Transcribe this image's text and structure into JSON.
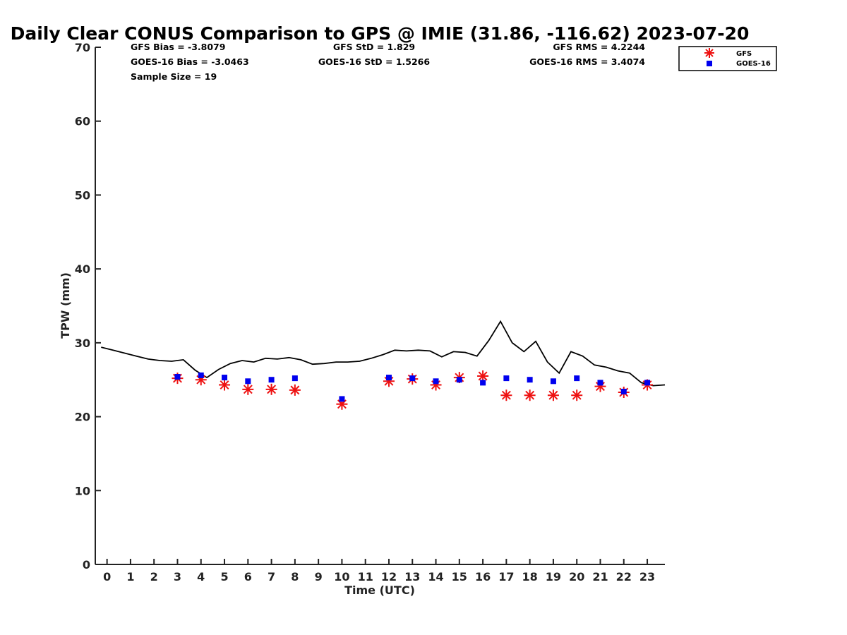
{
  "chart_data": {
    "type": "scatter",
    "title": "Daily Clear CONUS Comparison to GPS @ IMIE (31.86, -116.62) 2023-07-20",
    "xlabel": "Time (UTC)",
    "ylabel": "TPW (mm)",
    "xlim": [
      -0.5,
      23.75
    ],
    "ylim": [
      0,
      70
    ],
    "x_ticks": [
      0,
      1,
      2,
      3,
      4,
      5,
      6,
      7,
      8,
      9,
      10,
      11,
      12,
      13,
      14,
      15,
      16,
      17,
      18,
      19,
      20,
      21,
      22,
      23
    ],
    "x_tick_labels": [
      "0",
      "1",
      "2",
      "3",
      "4",
      "5",
      "6",
      "7",
      "8",
      "9",
      "10",
      "11",
      "12",
      "13",
      "14",
      "15",
      "16",
      "17",
      "18",
      "19",
      "20",
      "21",
      "22",
      "23"
    ],
    "y_ticks": [
      0,
      10,
      20,
      30,
      40,
      50,
      60,
      70
    ],
    "y_tick_labels": [
      "0",
      "10",
      "20",
      "30",
      "40",
      "50",
      "60",
      "70"
    ],
    "grid": false,
    "legend_position": "top-right",
    "stats": [
      "GFS Bias = -3.8079",
      "GOES-16 Bias = -3.0463",
      "Sample Size = 19",
      "GFS StD = 1.829",
      "GOES-16 StD = 1.5266",
      "GFS RMS = 4.2244",
      "GOES-16 RMS = 3.4074"
    ],
    "gps_line": {
      "color": "#000000",
      "x": [
        -0.25,
        0.25,
        0.75,
        1.25,
        1.75,
        2.25,
        2.75,
        3.25,
        3.75,
        4.25,
        4.75,
        5.25,
        5.75,
        6.25,
        6.75,
        7.25,
        7.75,
        8.25,
        8.75,
        9.25,
        9.75,
        10.25,
        10.75,
        11.25,
        11.75,
        12.25,
        12.75,
        13.25,
        13.75,
        14.25,
        14.75,
        15.25,
        15.75,
        16.25,
        16.75,
        17.25,
        17.75,
        18.25,
        18.75,
        19.25,
        19.75,
        20.25,
        20.75,
        21.25,
        21.75,
        22.25,
        22.75,
        23.25,
        23.75
      ],
      "y": [
        29.4,
        29.0,
        28.6,
        28.2,
        27.8,
        27.6,
        27.5,
        27.7,
        26.3,
        25.3,
        26.4,
        27.2,
        27.6,
        27.4,
        27.9,
        27.8,
        28.0,
        27.7,
        27.1,
        27.2,
        27.4,
        27.4,
        27.5,
        27.9,
        28.4,
        29.0,
        28.9,
        29.0,
        28.9,
        28.1,
        28.8,
        28.7,
        28.2,
        30.3,
        32.9,
        30.0,
        28.8,
        30.2,
        27.4,
        25.9,
        28.8,
        28.2,
        27.0,
        26.7,
        26.2,
        25.9,
        24.6,
        24.2,
        24.3
      ]
    },
    "series": [
      {
        "name": "GFS",
        "marker": "asterisk",
        "color": "#ee1111",
        "x": [
          3,
          4,
          5,
          6,
          7,
          8,
          10,
          12,
          13,
          14,
          15,
          16,
          17,
          18,
          19,
          20,
          21,
          22,
          23
        ],
        "values": [
          25.2,
          25.0,
          24.3,
          23.7,
          23.7,
          23.6,
          21.7,
          24.8,
          25.1,
          24.3,
          25.3,
          25.5,
          22.9,
          22.9,
          22.9,
          22.9,
          24.1,
          23.3,
          24.3
        ]
      },
      {
        "name": "GOES-16",
        "marker": "square",
        "color": "#0000ee",
        "x": [
          3,
          4,
          5,
          6,
          7,
          8,
          10,
          12,
          13,
          14,
          15,
          16,
          17,
          18,
          19,
          20,
          21,
          22,
          23
        ],
        "values": [
          25.4,
          25.6,
          25.3,
          24.8,
          25.0,
          25.2,
          22.4,
          25.3,
          25.2,
          24.8,
          25.0,
          24.6,
          25.2,
          25.0,
          24.8,
          25.2,
          24.6,
          23.4,
          24.6
        ]
      }
    ]
  }
}
